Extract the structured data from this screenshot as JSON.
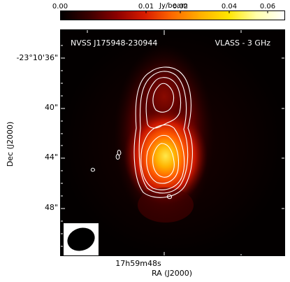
{
  "colorbar": {
    "unit": "Jy/beam",
    "ticks": [
      "0.00",
      "0.01",
      "0.02",
      "0.04",
      "0.06"
    ],
    "colors": [
      "#000000",
      "#3a0000",
      "#8b0000",
      "#d81b00",
      "#ff6a00",
      "#ffb000",
      "#ffe600",
      "#ffffaa",
      "#ffffff"
    ]
  },
  "image": {
    "source_name": "NVSS J175948-230944",
    "survey": "VLASS - 3 GHz",
    "contour_color": "#ffffff",
    "beam_color": "#000000"
  },
  "axes": {
    "y_label": "Dec (J2000)",
    "x_label": "RA (J2000)",
    "y_ticks": [
      "-23°10'36\"",
      "40\"",
      "44\"",
      "48\""
    ],
    "x_ticks": [
      "17h59m48s"
    ]
  }
}
